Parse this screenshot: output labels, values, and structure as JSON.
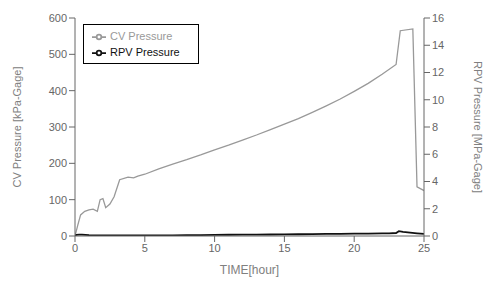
{
  "chart_data": {
    "type": "line",
    "xlabel": "TIME[hour]",
    "ylabel": "CV Pressure [kPa-Gage]",
    "y2label": "RPV Pressure [MPa-Gage]",
    "xlim": [
      0,
      25
    ],
    "xticks": [
      0,
      5,
      10,
      15,
      20,
      25
    ],
    "ylim": [
      0,
      600
    ],
    "yticks": [
      0,
      100,
      200,
      300,
      400,
      500,
      600
    ],
    "y2lim": [
      0,
      16
    ],
    "y2ticks": [
      0,
      2,
      4,
      6,
      8,
      10,
      12,
      14,
      16
    ],
    "grid": false,
    "legend": "upper left",
    "series": [
      {
        "name": "CV Pressure",
        "color": "#999999",
        "x": [
          0,
          0.2,
          0.4,
          0.7,
          1.0,
          1.3,
          1.6,
          1.8,
          2.0,
          2.2,
          2.5,
          2.8,
          3.2,
          3.8,
          4.2,
          4.5,
          5.0,
          6.0,
          7.0,
          8.0,
          9.0,
          10.0,
          11.0,
          12.0,
          13.0,
          14.0,
          15.0,
          16.0,
          17.0,
          18.0,
          19.0,
          20.0,
          21.0,
          22.0,
          23.0,
          23.3,
          24.2,
          24.5,
          25.0
        ],
        "values": [
          0,
          30,
          58,
          68,
          72,
          74,
          68,
          100,
          103,
          78,
          88,
          108,
          155,
          162,
          160,
          165,
          170,
          185,
          198,
          210,
          223,
          237,
          250,
          264,
          278,
          293,
          308,
          323,
          340,
          358,
          377,
          398,
          420,
          445,
          472,
          565,
          570,
          135,
          125
        ]
      },
      {
        "name": "RPV Pressure",
        "color": "#111111",
        "axis": "y2",
        "x": [
          0,
          0.1,
          0.3,
          0.5,
          1.0,
          2.0,
          3.0,
          4.0,
          5.0,
          6.0,
          7.0,
          8.0,
          9.0,
          10.0,
          11.0,
          12.0,
          13.0,
          14.0,
          15.0,
          16.0,
          17.0,
          18.0,
          19.0,
          20.0,
          21.0,
          22.0,
          22.5,
          23.0,
          23.2,
          23.5,
          24.0,
          24.5,
          25.0
        ],
        "values": [
          0.0,
          0.08,
          0.1,
          0.1,
          0.07,
          0.05,
          0.04,
          0.05,
          0.05,
          0.05,
          0.05,
          0.06,
          0.07,
          0.08,
          0.09,
          0.1,
          0.1,
          0.11,
          0.12,
          0.13,
          0.14,
          0.15,
          0.16,
          0.17,
          0.18,
          0.19,
          0.2,
          0.22,
          0.35,
          0.3,
          0.25,
          0.2,
          0.15
        ]
      }
    ]
  }
}
